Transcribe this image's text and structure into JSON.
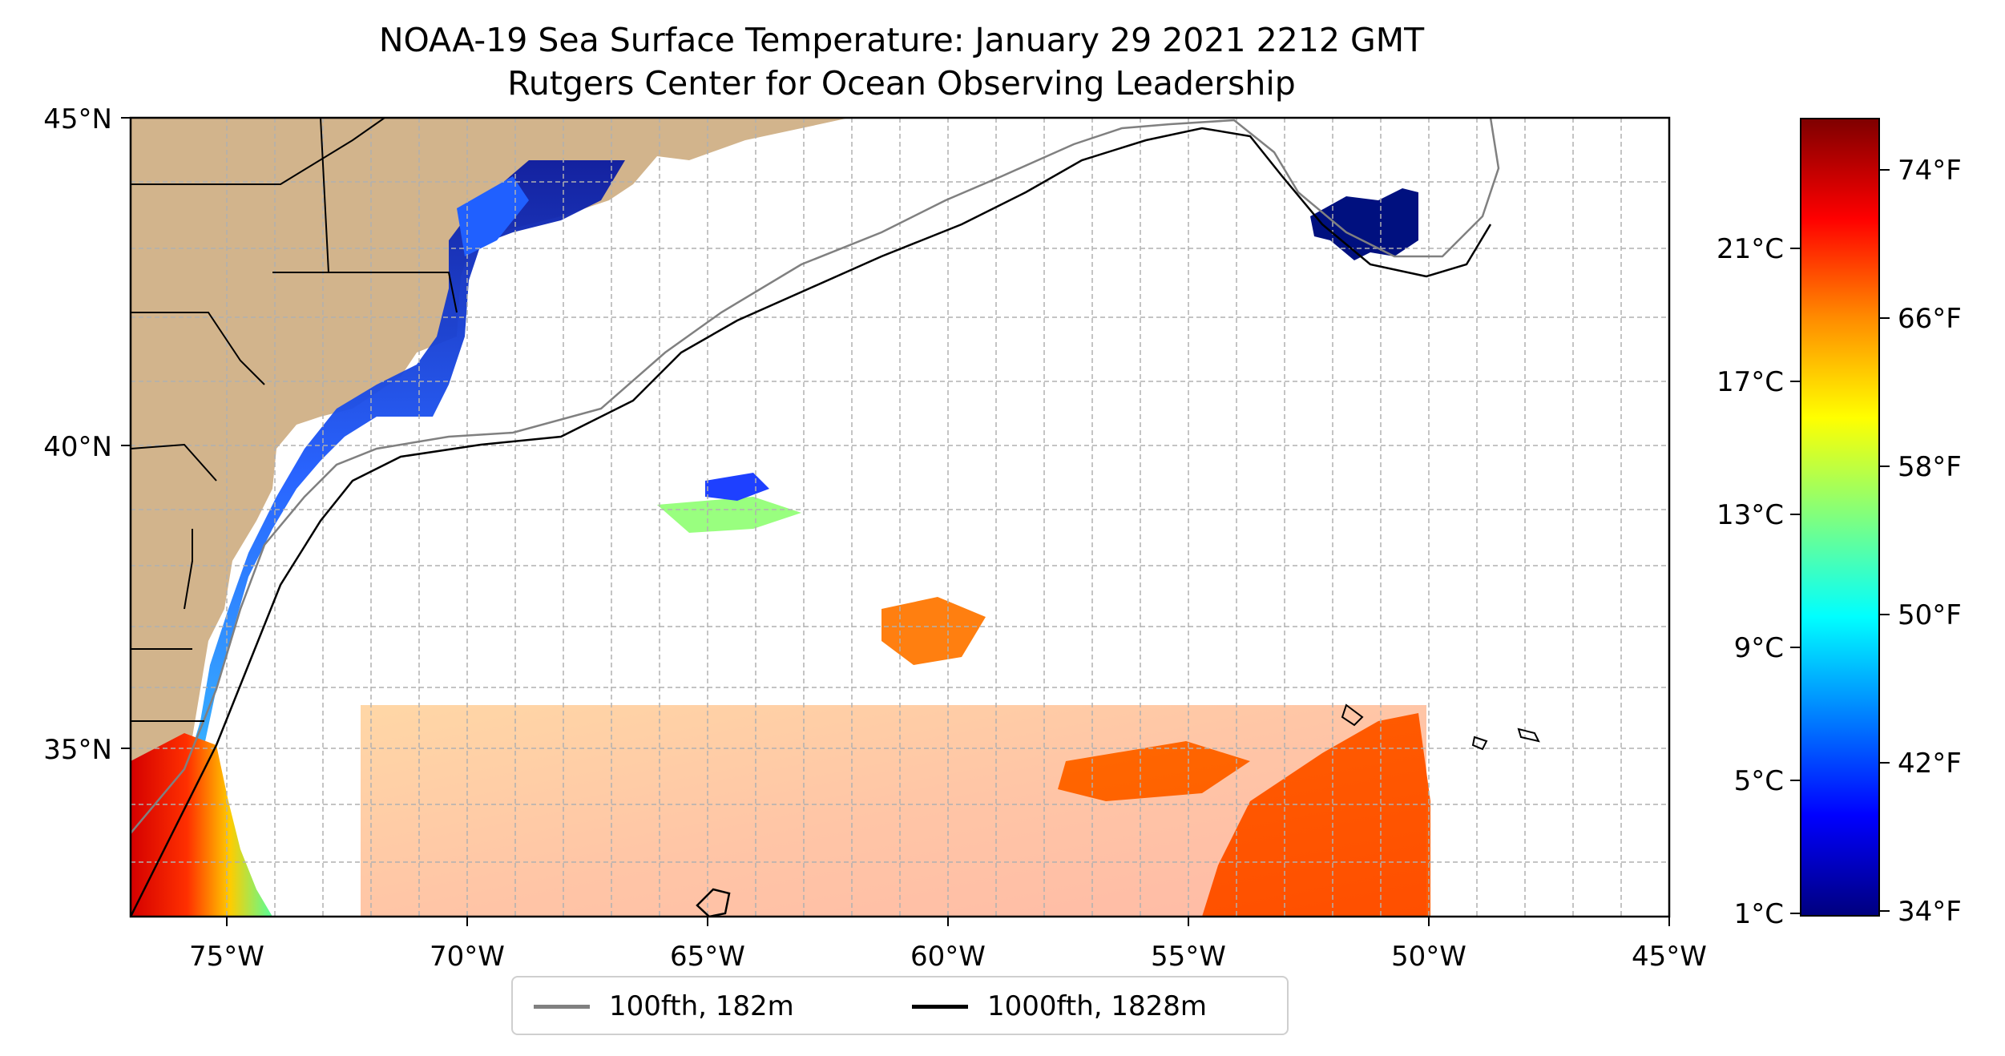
{
  "title": "NOAA-19 Sea Surface Temperature: January 29 2021 2212 GMT",
  "subtitle": "Rutgers Center for Ocean Observing Leadership",
  "map": {
    "lon_ticks": [
      "75°W",
      "70°W",
      "65°W",
      "60°W",
      "55°W",
      "50°W",
      "45°W"
    ],
    "lat_ticks": [
      "45°N",
      "40°N",
      "35°N"
    ],
    "lon_range": [
      -77,
      -45
    ],
    "lat_range": [
      32.2,
      45
    ],
    "gridlines": true,
    "land_color": "#d2b48c",
    "lake_color": "#9fc0e6"
  },
  "legend": {
    "placement": "bottom-center",
    "items": [
      {
        "label": "100fth, 182m",
        "color": "#808080"
      },
      {
        "label": "1000fth, 1828m",
        "color": "#000000"
      }
    ]
  },
  "colorbar": {
    "colormap": "jet",
    "celsius_labels": [
      "21°C",
      "17°C",
      "13°C",
      "9°C",
      "5°C",
      "1°C"
    ],
    "fahrenheit_labels": [
      "74°F",
      "66°F",
      "58°F",
      "50°F",
      "42°F",
      "34°F"
    ],
    "colors": [
      "#7f0000",
      "#ff0000",
      "#ff8c00",
      "#ffff00",
      "#7fff7f",
      "#00ffff",
      "#0080ff",
      "#0000ff",
      "#00007f"
    ]
  }
}
